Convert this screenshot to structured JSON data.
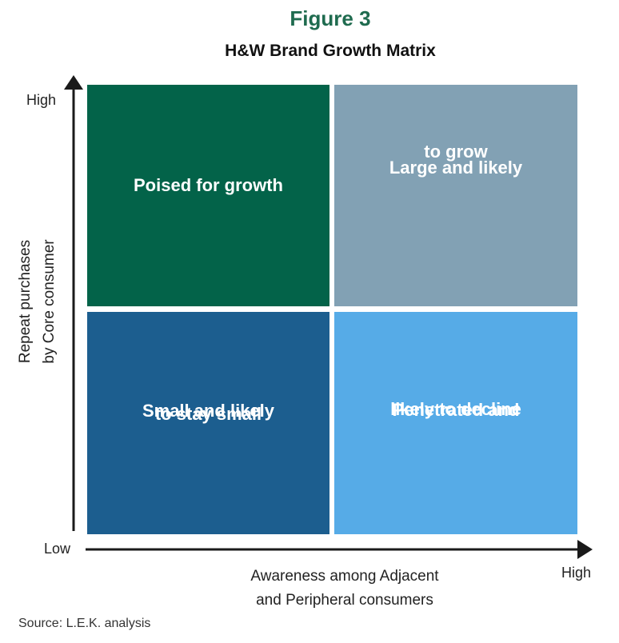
{
  "figure_label": "Figure 3",
  "title": "H&W Brand Growth Matrix",
  "quadrants": {
    "top_left": {
      "line1": "Poised for growth",
      "line2": "",
      "color": "#036349"
    },
    "top_right": {
      "line1": "Large and likely",
      "line2": "to grow",
      "color": "#82a1b4"
    },
    "bottom_left": {
      "line1": "Small and likely",
      "line2": "to stay small",
      "color": "#1c5e8f"
    },
    "bottom_right": {
      "line1": "Penetrated and",
      "line2": "likely to decline",
      "color": "#56abe7"
    }
  },
  "y_axis": {
    "high_label": "High",
    "title_line1": "Repeat purchases",
    "title_line2": "by Core consumer"
  },
  "x_axis": {
    "low_label": "Low",
    "high_label": "High",
    "title_line1": "Awareness among Adjacent",
    "title_line2": "and Peripheral consumers"
  },
  "source": "Source: L.E.K. analysis",
  "colors": {
    "figure_label": "#1f6b4f",
    "axis": "#1a1a1a"
  }
}
